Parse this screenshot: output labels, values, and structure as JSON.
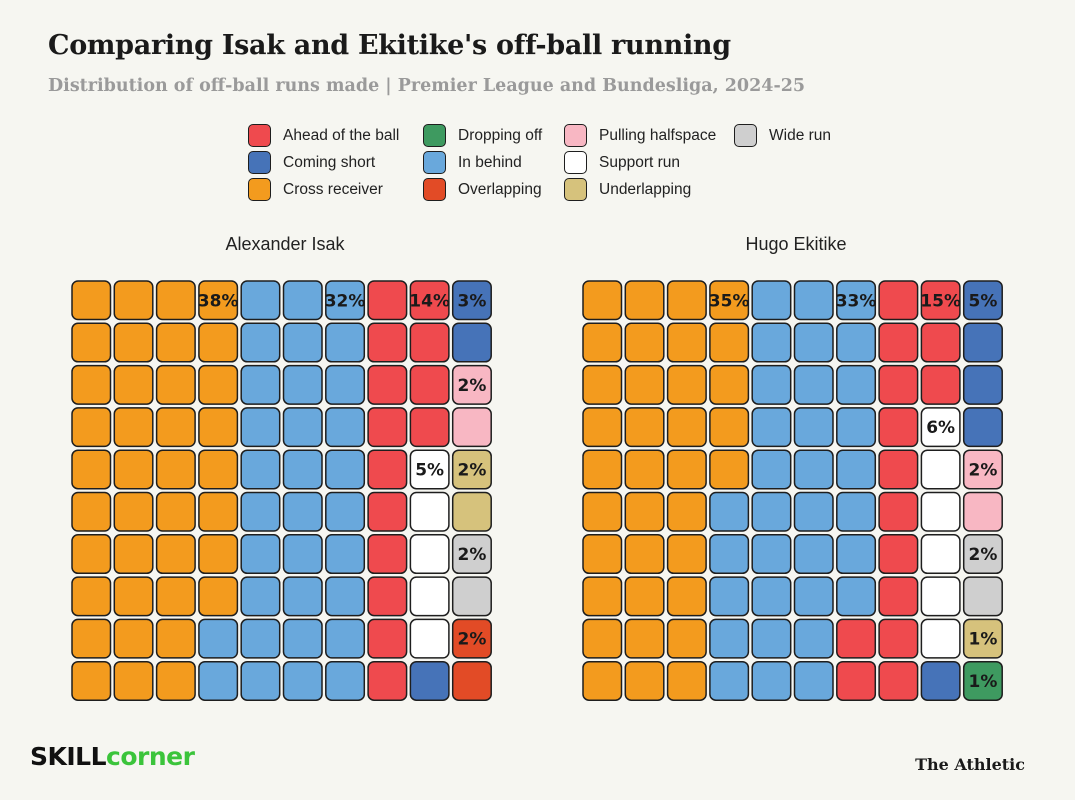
{
  "title": "Comparing Isak and Ekitike's off-ball running",
  "subtitle": "Distribution of off-ball runs made | Premier League and Bundesliga, 2024-25",
  "legend": [
    {
      "key": "ahead",
      "label": "Ahead of the ball",
      "color": "#ef4a4e"
    },
    {
      "key": "short",
      "label": "Coming short",
      "color": "#4673b8"
    },
    {
      "key": "cross",
      "label": "Cross receiver",
      "color": "#f39b1e"
    },
    {
      "key": "drop",
      "label": "Dropping off",
      "color": "#3e9a60"
    },
    {
      "key": "behind",
      "label": "In behind",
      "color": "#69a8dc"
    },
    {
      "key": "overlap",
      "label": "Overlapping",
      "color": "#e24b26"
    },
    {
      "key": "halfspace",
      "label": "Pulling halfspace",
      "color": "#f8b7c3"
    },
    {
      "key": "support",
      "label": "Support run",
      "color": "#ffffff"
    },
    {
      "key": "under",
      "label": "Underlapping",
      "color": "#d6c27c"
    },
    {
      "key": "wide",
      "label": "Wide run",
      "color": "#cfcfcf"
    }
  ],
  "chart_data": [
    {
      "type": "waffle",
      "title": "Alexander Isak",
      "categories": [
        "Cross receiver",
        "In behind",
        "Ahead of the ball",
        "Support run",
        "Coming short",
        "Pulling halfspace",
        "Underlapping",
        "Wide run",
        "Overlapping"
      ],
      "values": [
        38,
        32,
        14,
        5,
        3,
        2,
        2,
        2,
        2
      ],
      "labels": [
        "38%",
        "32%",
        "14%",
        "5%",
        "3%",
        "2%",
        "2%",
        "2%",
        "2%"
      ]
    },
    {
      "type": "waffle",
      "title": "Hugo Ekitike",
      "categories": [
        "Cross receiver",
        "In behind",
        "Ahead of the ball",
        "Support run",
        "Coming short",
        "Pulling halfspace",
        "Wide run",
        "Underlapping",
        "Dropping off"
      ],
      "values": [
        35,
        33,
        15,
        6,
        5,
        2,
        2,
        1,
        1
      ],
      "labels": [
        "35%",
        "33%",
        "15%",
        "6%",
        "5%",
        "2%",
        "2%",
        "1%",
        "1%"
      ]
    }
  ],
  "brand": {
    "skillcorner_part1": "SKILL",
    "skillcorner_part2": "corner",
    "athletic": "The Athletic"
  }
}
